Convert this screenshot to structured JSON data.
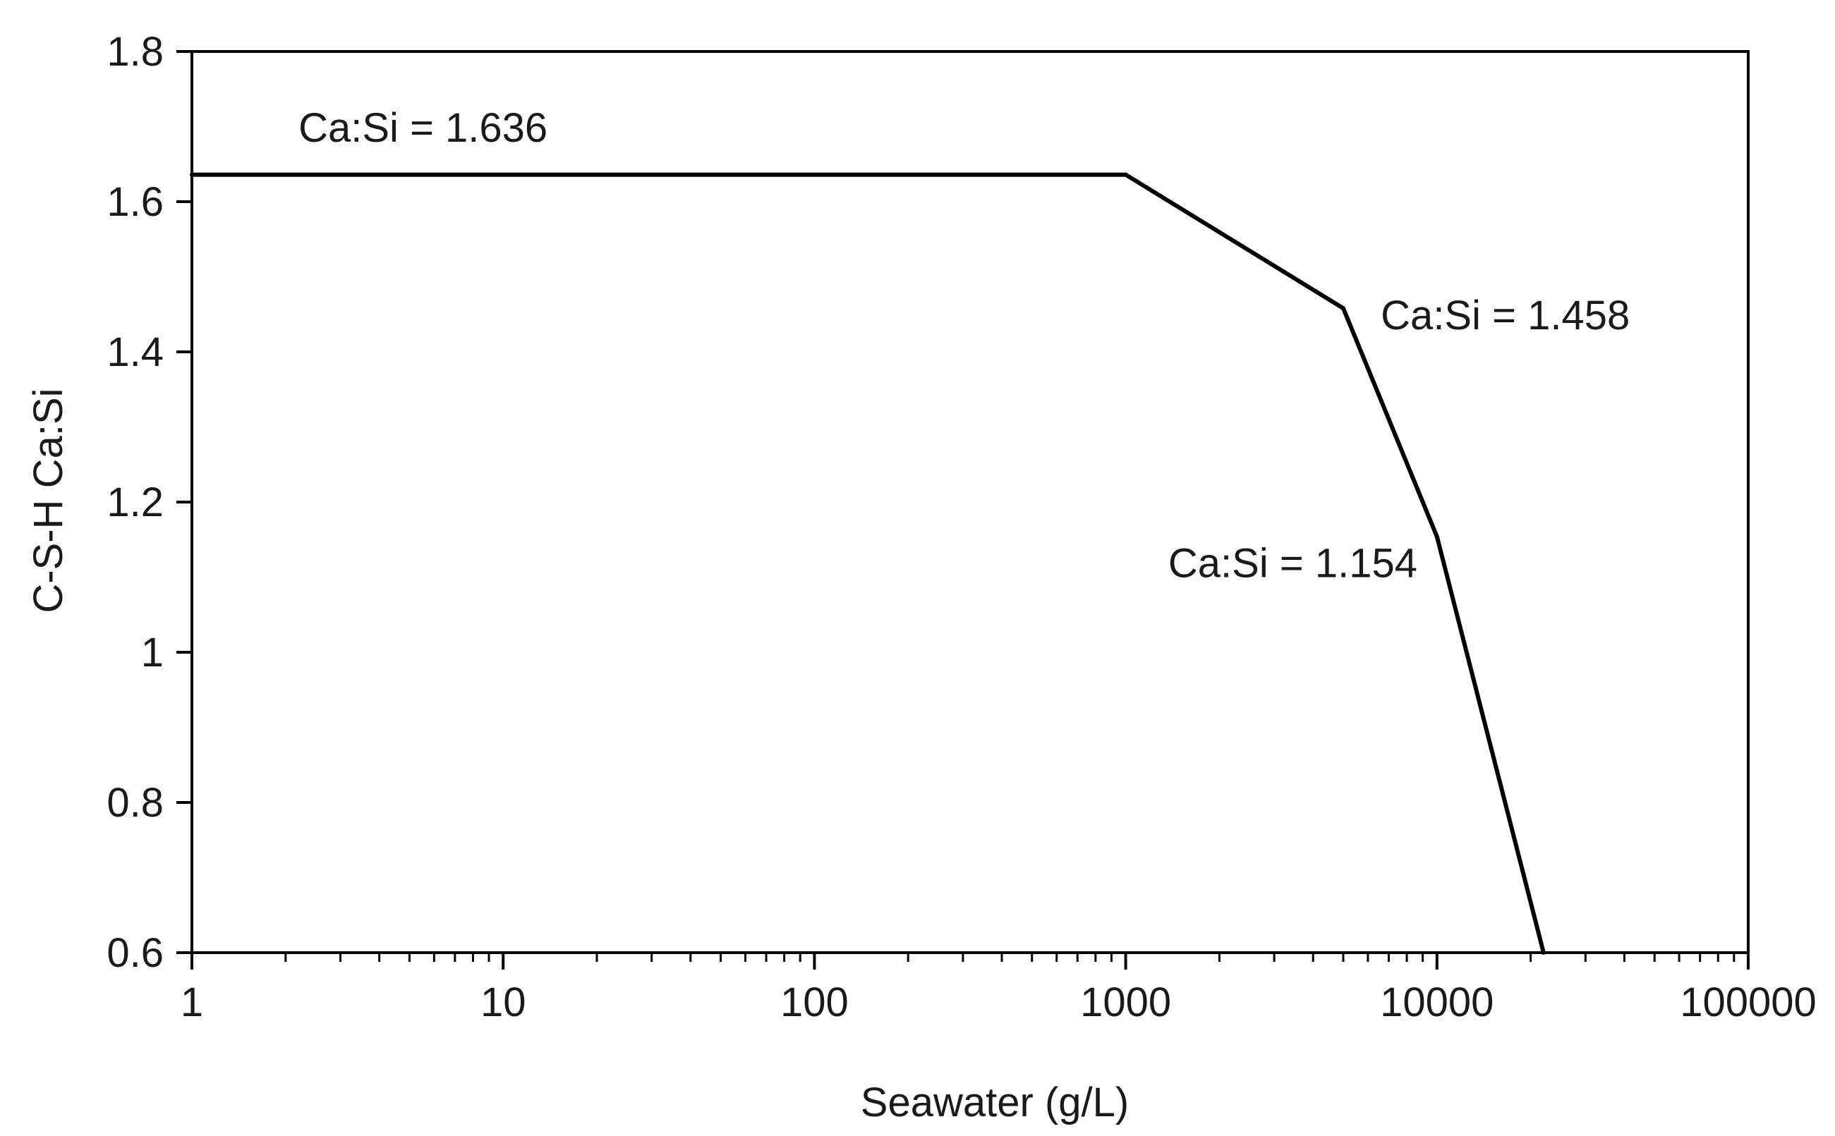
{
  "chart_data": {
    "type": "line",
    "title": "",
    "xlabel": "Seawater (g/L)",
    "ylabel": "C-S-H Ca:Si",
    "xscale": "log",
    "xlim": [
      1,
      100000
    ],
    "ylim": [
      0.6,
      1.8
    ],
    "grid": false,
    "legend": "none",
    "x_ticks": [
      {
        "value": 1,
        "label": "1"
      },
      {
        "value": 10,
        "label": "10"
      },
      {
        "value": 100,
        "label": "100"
      },
      {
        "value": 1000,
        "label": "1000"
      },
      {
        "value": 10000,
        "label": "10000"
      },
      {
        "value": 100000,
        "label": "100000"
      }
    ],
    "y_ticks": [
      {
        "value": 0.6,
        "label": "0.6"
      },
      {
        "value": 0.8,
        "label": "0.8"
      },
      {
        "value": 1.0,
        "label": "1"
      },
      {
        "value": 1.2,
        "label": "1.2"
      },
      {
        "value": 1.4,
        "label": "1.4"
      },
      {
        "value": 1.6,
        "label": "1.6"
      },
      {
        "value": 1.8,
        "label": "1.8"
      }
    ],
    "series": [
      {
        "name": "C-S-H Ca:Si",
        "color": "#000000",
        "x": [
          1,
          1000,
          5000,
          10000,
          22000
        ],
        "y": [
          1.636,
          1.636,
          1.458,
          1.154,
          0.6
        ]
      }
    ],
    "annotations": [
      {
        "text": "Ca:Si = 1.636",
        "x": 2.2,
        "y": 1.68
      },
      {
        "text": "Ca:Si = 1.458",
        "x": 6600,
        "y": 1.43
      },
      {
        "text": "Ca:Si = 1.154",
        "x": 1370,
        "y": 1.1
      }
    ]
  }
}
